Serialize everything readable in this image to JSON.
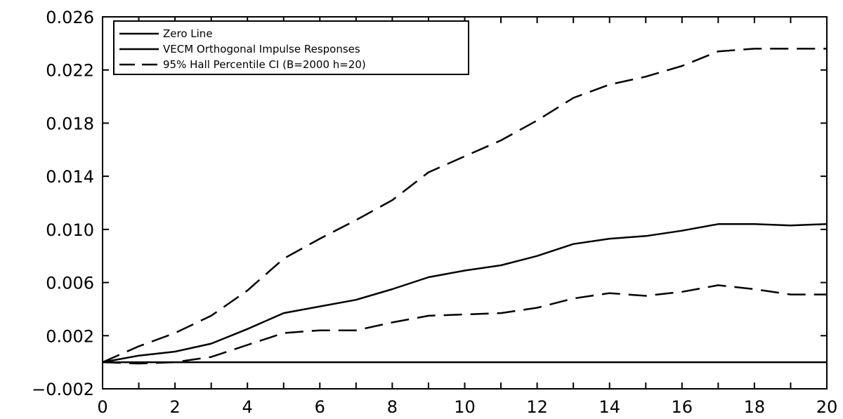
{
  "chart_data": {
    "type": "line",
    "title": "",
    "xlabel": "",
    "ylabel": "",
    "xlim": [
      0,
      20
    ],
    "ylim": [
      -0.002,
      0.026
    ],
    "x_ticks": [
      "0",
      "2",
      "4",
      "6",
      "8",
      "10",
      "12",
      "14",
      "16",
      "18",
      "20"
    ],
    "y_ticks": [
      "0.026",
      "0.022",
      "0.018",
      "0.014",
      "0.010",
      "0.006",
      "0.002",
      "−0.002"
    ],
    "grid": false,
    "legend_position": "top-left",
    "legend": [
      "Zero Line",
      "VECM Orthogonal Impulse Responses",
      "95% Hall Percentile CI (B=2000 h=20)"
    ],
    "series": [
      {
        "name": "Zero Line",
        "style": "solid",
        "x": [
          0,
          20
        ],
        "values": [
          0,
          0
        ]
      },
      {
        "name": "VECM Orthogonal Impulse Responses",
        "style": "solid",
        "x": [
          0,
          1,
          2,
          3,
          4,
          5,
          6,
          7,
          8,
          9,
          10,
          11,
          12,
          13,
          14,
          15,
          16,
          17,
          18,
          19,
          20
        ],
        "values": [
          0.0,
          0.0005,
          0.0008,
          0.0014,
          0.0025,
          0.0037,
          0.0042,
          0.0047,
          0.0055,
          0.0064,
          0.0069,
          0.0073,
          0.008,
          0.0089,
          0.0093,
          0.0095,
          0.0099,
          0.0104,
          0.0104,
          0.0103,
          0.0104
        ]
      },
      {
        "name": "95% Hall Percentile CI (B=2000 h=20)",
        "style": "dashed",
        "x": [
          0,
          1,
          2,
          3,
          4,
          5,
          6,
          7,
          8,
          9,
          10,
          11,
          12,
          13,
          14,
          15,
          16,
          17,
          18,
          19,
          20
        ],
        "values": [
          0.0,
          0.0012,
          0.0022,
          0.0035,
          0.0054,
          0.0078,
          0.0093,
          0.0107,
          0.0122,
          0.0143,
          0.0155,
          0.0167,
          0.0182,
          0.0199,
          0.0209,
          0.0215,
          0.0223,
          0.0234,
          0.0236,
          0.0236,
          0.0236
        ]
      },
      {
        "name": "",
        "style": "dashed",
        "x": [
          0,
          1,
          2,
          3,
          4,
          5,
          6,
          7,
          8,
          9,
          10,
          11,
          12,
          13,
          14,
          15,
          16,
          17,
          18,
          19,
          20
        ],
        "values": [
          0.0,
          -0.0001,
          0.0,
          0.0004,
          0.0013,
          0.0022,
          0.0024,
          0.0024,
          0.003,
          0.0035,
          0.0036,
          0.0037,
          0.0041,
          0.0048,
          0.0052,
          0.005,
          0.0053,
          0.0058,
          0.0055,
          0.0051,
          0.0051
        ]
      }
    ]
  }
}
